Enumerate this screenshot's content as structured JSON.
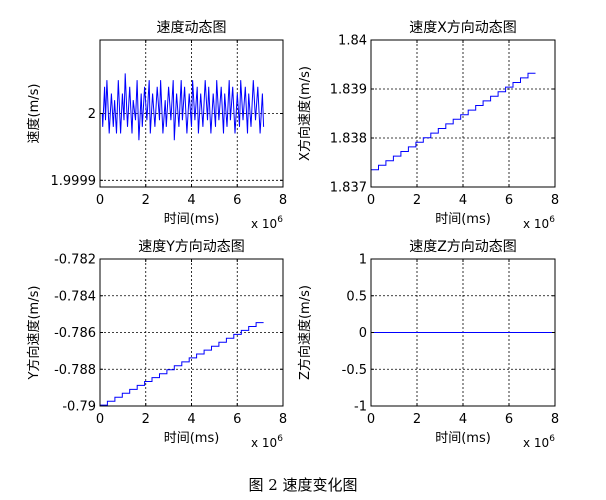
{
  "figure": {
    "caption": "图 2 速度变化图"
  },
  "style": {
    "line_color": "#0000ff",
    "axis_color": "#000000",
    "grid_color": "#000000",
    "background": "#ffffff"
  },
  "chart_data": [
    {
      "type": "line",
      "title": "速度动态图",
      "xlabel": "时间(ms)",
      "ylabel": "速度(m/s)",
      "x_exponent": "x 10^6",
      "xlim": [
        0,
        8
      ],
      "ylim": [
        1.99989,
        2.00011
      ],
      "xticks": [
        0,
        2,
        4,
        6,
        8
      ],
      "xtick_labels": [
        "0",
        "2",
        "4",
        "6",
        "8"
      ],
      "yticks": [
        1.9999,
        2.0
      ],
      "ytick_labels": [
        "1.9999",
        "2"
      ],
      "grid": true,
      "series": [
        {
          "x": [
            0.1,
            0.12,
            0.2,
            0.24,
            0.3,
            0.4,
            0.5,
            0.58,
            0.64,
            0.72,
            0.8,
            0.86,
            0.9,
            0.98,
            1.05,
            1.1,
            1.2,
            1.3,
            1.4,
            1.45,
            1.55,
            1.62,
            1.7,
            1.8,
            1.85,
            1.95,
            2.05,
            2.15,
            2.2,
            2.3,
            2.4,
            2.5,
            2.6,
            2.65,
            2.75,
            2.85,
            2.9,
            3.0,
            3.1,
            3.2,
            3.25,
            3.35,
            3.45,
            3.55,
            3.6,
            3.7,
            3.8,
            3.9,
            4.0,
            4.05,
            4.15,
            4.25,
            4.3,
            4.4,
            4.5,
            4.6,
            4.7,
            4.75,
            4.85,
            4.95,
            5.05,
            5.1,
            5.2,
            5.3,
            5.4,
            5.45,
            5.55,
            5.65,
            5.7,
            5.8,
            5.9,
            6.0,
            6.1,
            6.15,
            6.25,
            6.35,
            6.45,
            6.5,
            6.6,
            6.7,
            6.8,
            6.9,
            7.0,
            7.1,
            7.15
          ],
          "y": [
            2.0,
            1.99998,
            2.00004,
            1.99999,
            2.00005,
            1.99997,
            2.00003,
            1.99998,
            2.00002,
            1.99997,
            2.00005,
            2.0,
            1.99997,
            2.00003,
            1.99999,
            2.00006,
            1.99998,
            2.00004,
            1.99997,
            2.00002,
            1.99999,
            2.00005,
            1.99996,
            2.00003,
            1.99998,
            2.00004,
            1.99999,
            2.00005,
            1.99997,
            2.00003,
            1.99998,
            2.00004,
            1.99999,
            2.00005,
            1.99997,
            2.00002,
            1.99998,
            2.00004,
            1.99999,
            2.00005,
            1.99996,
            2.00003,
            1.99998,
            2.00005,
            1.99999,
            2.00004,
            1.99997,
            2.00003,
            1.99998,
            2.00005,
            1.99999,
            2.00004,
            1.99997,
            2.00003,
            1.99998,
            2.00005,
            1.99999,
            2.00004,
            1.99997,
            2.00003,
            1.99998,
            2.00005,
            1.99999,
            2.00004,
            1.99997,
            2.00003,
            1.99998,
            2.00005,
            1.99999,
            2.00004,
            1.99997,
            2.00003,
            1.99998,
            2.00005,
            1.99999,
            2.00004,
            1.99997,
            2.00003,
            1.99998,
            2.00005,
            1.99999,
            2.00004,
            1.99997,
            2.00003,
            1.99998
          ]
        }
      ]
    },
    {
      "type": "line",
      "title": "速度X方向动态图",
      "xlabel": "时间(ms)",
      "ylabel": "X方向速度(m/s)",
      "x_exponent": "x 10^6",
      "xlim": [
        0,
        8
      ],
      "ylim": [
        1.837,
        1.84
      ],
      "xticks": [
        0,
        2,
        4,
        6,
        8
      ],
      "xtick_labels": [
        "0",
        "2",
        "4",
        "6",
        "8"
      ],
      "yticks": [
        1.837,
        1.838,
        1.839,
        1.84
      ],
      "ytick_labels": [
        "1.837",
        "1.838",
        "1.839",
        "1.84"
      ],
      "grid": true,
      "series": [
        {
          "x": [
            0,
            7.15
          ],
          "y": [
            1.83735,
            1.83932
          ],
          "style": "staircase"
        }
      ]
    },
    {
      "type": "line",
      "title": "速度Y方向动态图",
      "xlabel": "时间(ms)",
      "ylabel": "Y方向速度(m/s)",
      "x_exponent": "x 10^6",
      "xlim": [
        0,
        8
      ],
      "ylim": [
        -0.79,
        -0.782
      ],
      "xticks": [
        0,
        2,
        4,
        6,
        8
      ],
      "xtick_labels": [
        "0",
        "2",
        "4",
        "6",
        "8"
      ],
      "yticks": [
        -0.79,
        -0.788,
        -0.786,
        -0.784,
        -0.782
      ],
      "ytick_labels": [
        "-0.79",
        "-0.788",
        "-0.786",
        "-0.784",
        "-0.782"
      ],
      "grid": true,
      "series": [
        {
          "x": [
            0,
            7.15
          ],
          "y": [
            -0.78995,
            -0.78546
          ],
          "style": "staircase"
        }
      ]
    },
    {
      "type": "line",
      "title": "速度Z方向动态图",
      "xlabel": "时间(ms)",
      "ylabel": "Z方向速度(m/s)",
      "x_exponent": "x 10^6",
      "xlim": [
        0,
        8
      ],
      "ylim": [
        -1,
        1
      ],
      "xticks": [
        0,
        2,
        4,
        6,
        8
      ],
      "xtick_labels": [
        "0",
        "2",
        "4",
        "6",
        "8"
      ],
      "yticks": [
        -1,
        -0.5,
        0,
        0.5,
        1
      ],
      "ytick_labels": [
        "-1",
        "-0.5",
        "0",
        "0.5",
        "1"
      ],
      "grid": true,
      "series": [
        {
          "x": [
            0,
            8
          ],
          "y": [
            0,
            0
          ]
        }
      ]
    }
  ]
}
